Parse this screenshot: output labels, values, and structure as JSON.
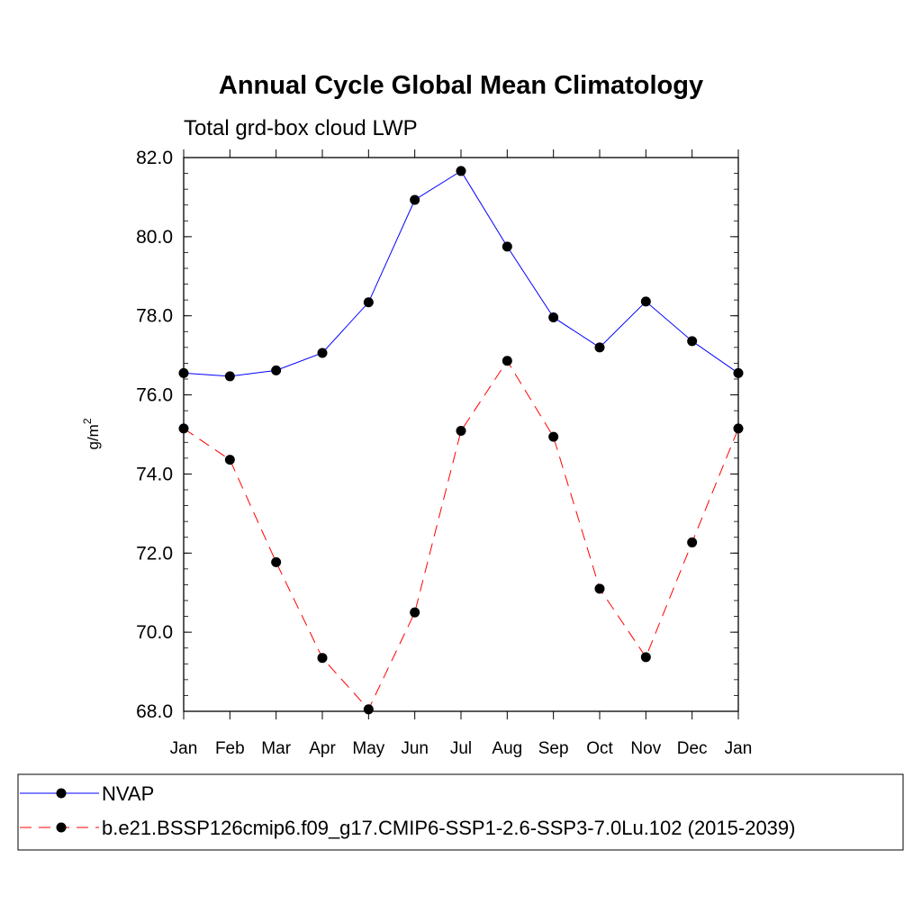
{
  "chart_data": {
    "type": "line",
    "title": "Annual Cycle Global Mean Climatology",
    "subtitle": "Total grd-box cloud LWP",
    "ylabel": "g/m",
    "ylabel_sup": "2",
    "ylim": [
      68.0,
      82.0
    ],
    "yticks": [
      "68.0",
      "70.0",
      "72.0",
      "74.0",
      "76.0",
      "78.0",
      "80.0",
      "82.0"
    ],
    "categories": [
      "Jan",
      "Feb",
      "Mar",
      "Apr",
      "May",
      "Jun",
      "Jul",
      "Aug",
      "Sep",
      "Oct",
      "Nov",
      "Dec",
      "Jan"
    ],
    "series": [
      {
        "name": "NVAP",
        "color": "#0000ff",
        "dash": "solid",
        "values": [
          76.55,
          76.47,
          76.62,
          77.06,
          78.34,
          80.93,
          81.66,
          79.75,
          77.96,
          77.2,
          78.36,
          77.36,
          76.55
        ]
      },
      {
        "name": "b.e21.BSSP126cmip6.f09_g17.CMIP6-SSP1-2.6-SSP3-7.0Lu.102 (2015-2039)",
        "color": "#ff0000",
        "dash": "dashed",
        "values": [
          75.15,
          74.36,
          71.77,
          69.35,
          68.05,
          70.5,
          75.09,
          76.86,
          74.94,
          71.1,
          69.37,
          72.27,
          75.15
        ]
      }
    ],
    "grid": false,
    "legend_position": "bottom"
  }
}
